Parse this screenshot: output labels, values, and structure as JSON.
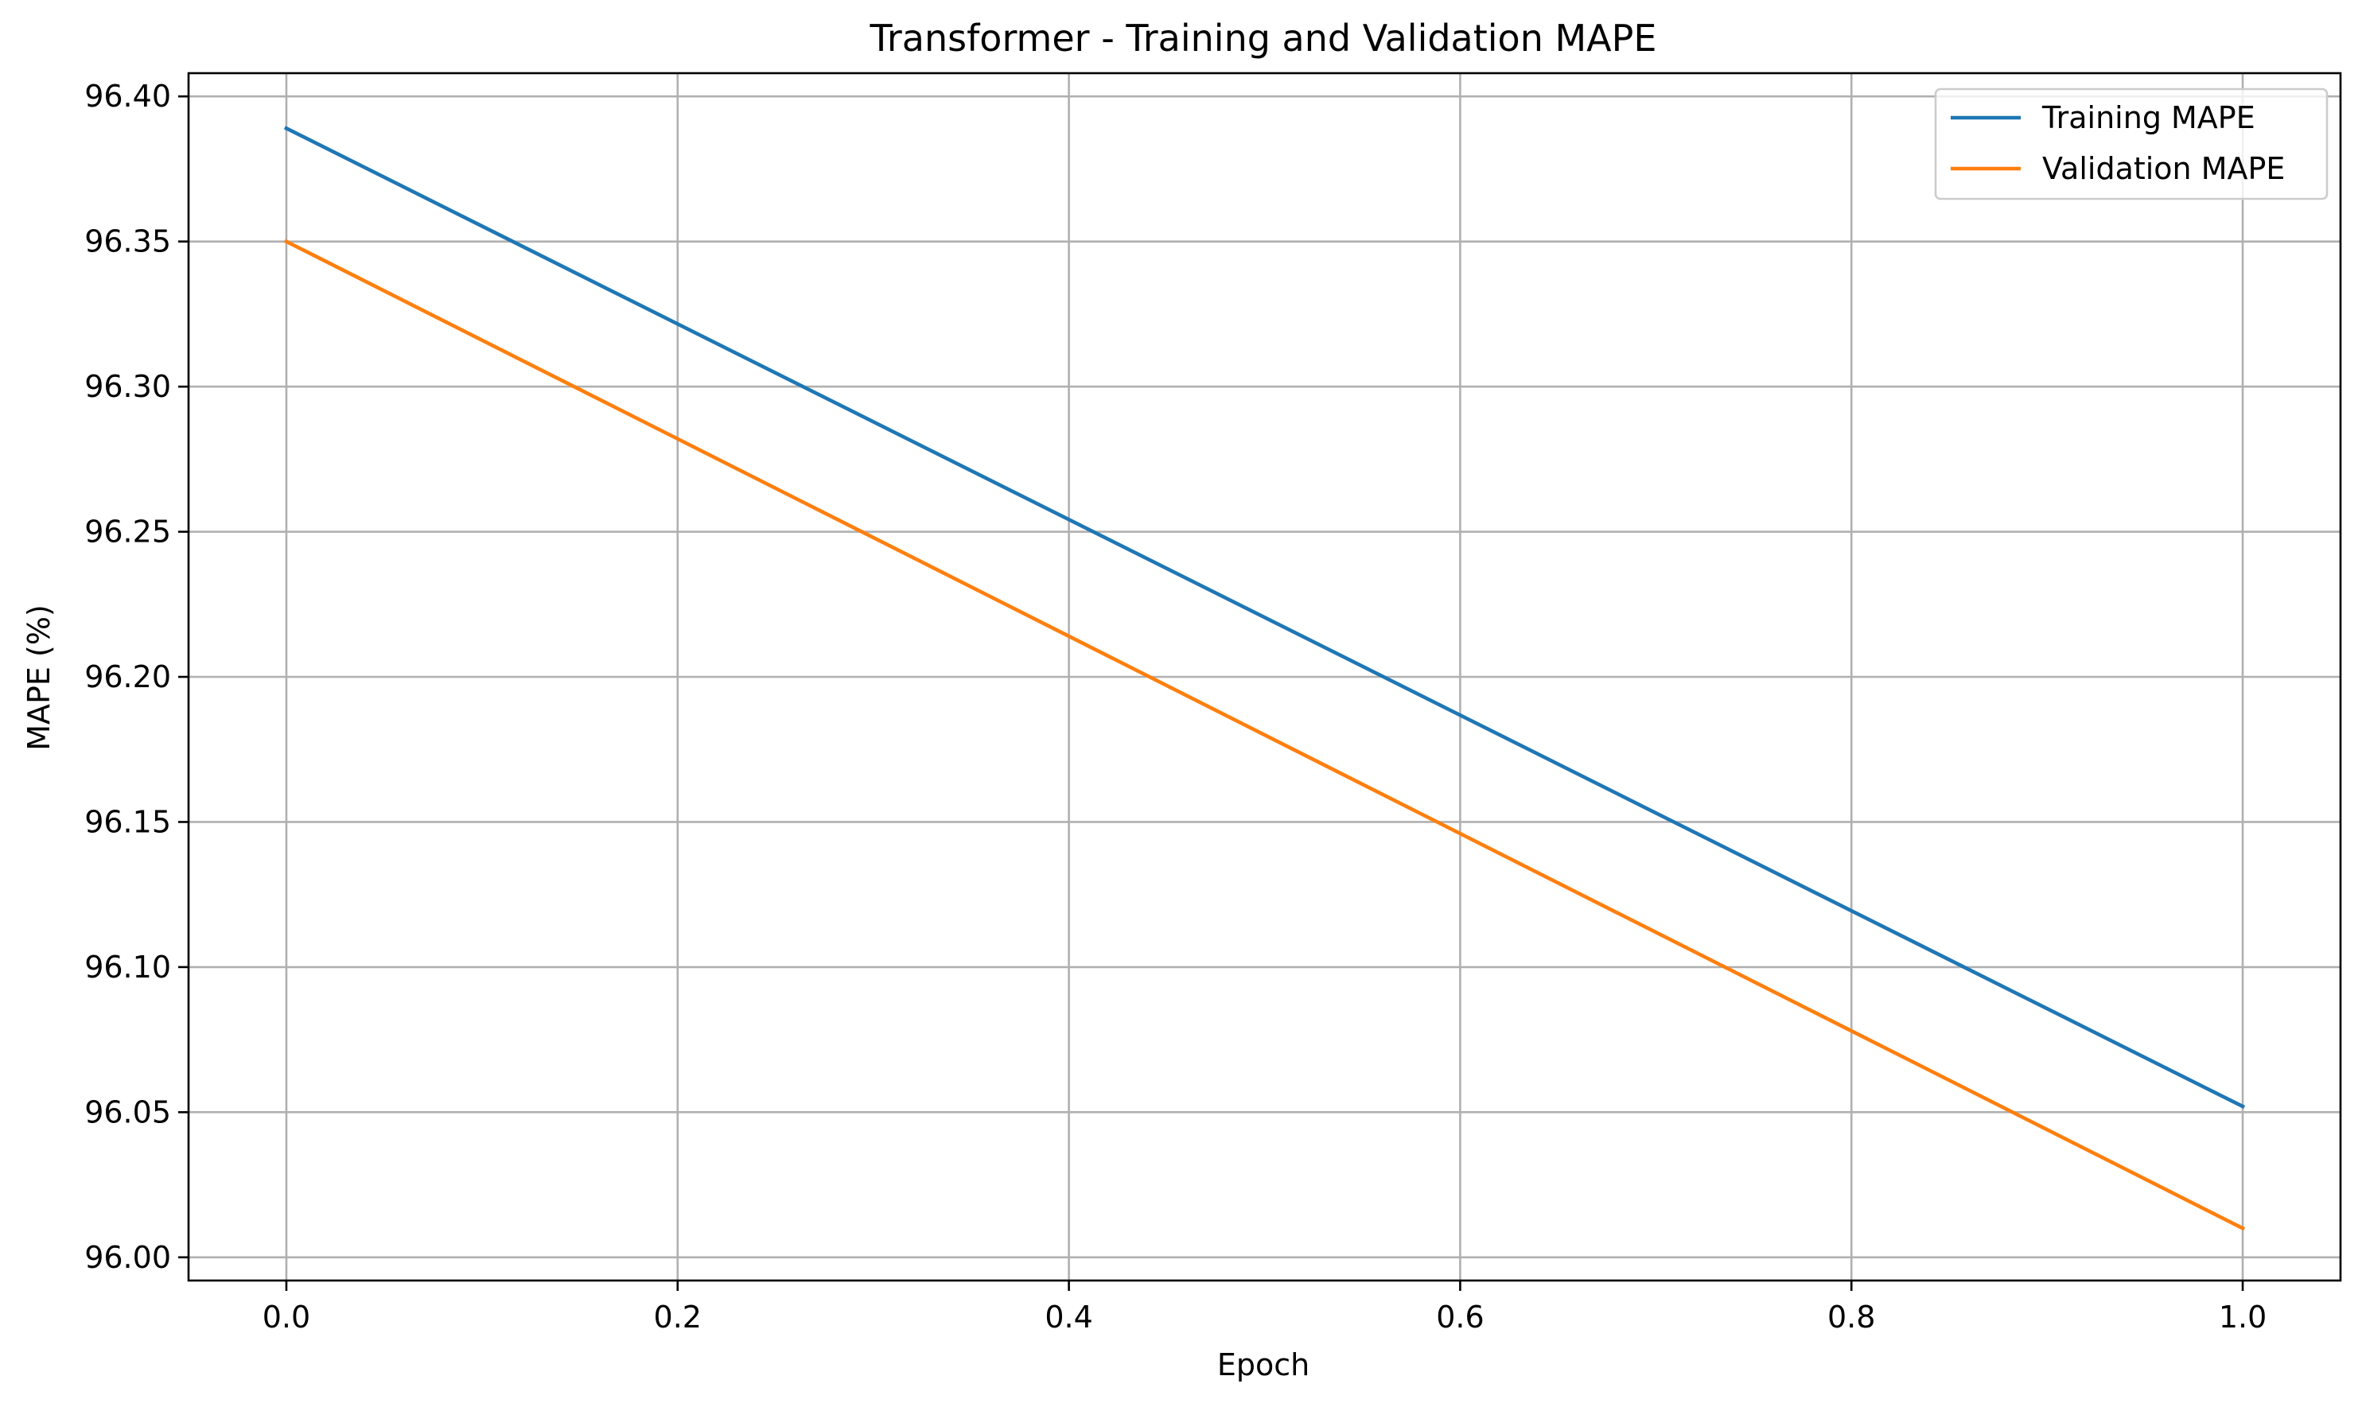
{
  "chart_data": {
    "type": "line",
    "title": "Transformer - Training and Validation MAPE",
    "xlabel": "Epoch",
    "ylabel": "MAPE (%)",
    "xlim": [
      -0.05,
      1.05
    ],
    "ylim": [
      95.992,
      96.408
    ],
    "xticks": [
      0.0,
      0.2,
      0.4,
      0.6,
      0.8,
      1.0
    ],
    "xtick_labels": [
      "0.0",
      "0.2",
      "0.4",
      "0.6",
      "0.8",
      "1.0"
    ],
    "yticks": [
      96.0,
      96.05,
      96.1,
      96.15,
      96.2,
      96.25,
      96.3,
      96.35,
      96.4
    ],
    "ytick_labels": [
      "96.00",
      "96.05",
      "96.10",
      "96.15",
      "96.20",
      "96.25",
      "96.30",
      "96.35",
      "96.40"
    ],
    "grid": true,
    "legend_position": "top-right",
    "x": [
      0,
      1
    ],
    "series": [
      {
        "name": "Training MAPE",
        "values": [
          96.389,
          96.052
        ],
        "color": "#1f77b4"
      },
      {
        "name": "Validation MAPE",
        "values": [
          96.35,
          96.01
        ],
        "color": "#ff7f0e"
      }
    ]
  }
}
